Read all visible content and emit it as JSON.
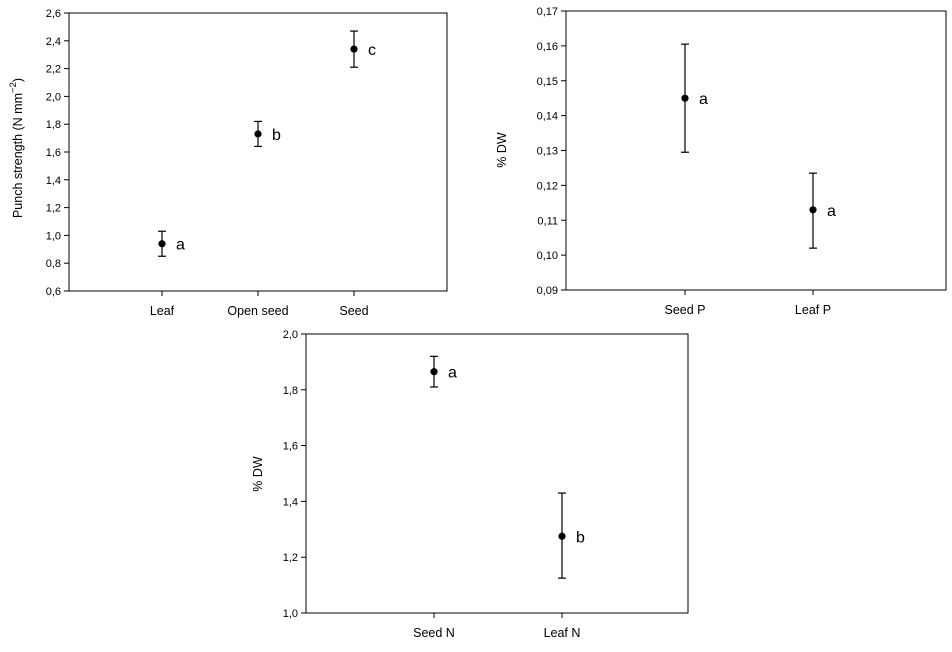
{
  "chart_data": [
    {
      "type": "scatter",
      "ylabel": "Punch strength (N  mm",
      "ylabel_sup": "−2",
      "ylabel_close": ")",
      "ylim": [
        0.6,
        2.6
      ],
      "yticks": [
        "0,6",
        "0,8",
        "1,0",
        "1,2",
        "1,4",
        "1,6",
        "1,8",
        "2,0",
        "2,2",
        "2,4",
        "2,6"
      ],
      "categories": [
        "Leaf",
        "Open seed",
        "Seed"
      ],
      "series": [
        {
          "values": [
            0.94,
            1.73,
            2.34
          ],
          "err_low": [
            0.85,
            1.64,
            2.21
          ],
          "err_high": [
            1.03,
            1.82,
            2.47
          ],
          "labels": [
            "a",
            "b",
            "c"
          ]
        }
      ]
    },
    {
      "type": "scatter",
      "ylabel": "% DW",
      "ylim": [
        0.09,
        0.17
      ],
      "yticks": [
        "0,09",
        "0,10",
        "0,11",
        "0,12",
        "0,13",
        "0,14",
        "0,15",
        "0,16",
        "0,17"
      ],
      "categories": [
        "Seed P",
        "Leaf P"
      ],
      "series": [
        {
          "values": [
            0.145,
            0.113
          ],
          "err_low": [
            0.1295,
            0.102
          ],
          "err_high": [
            0.1605,
            0.1235
          ],
          "labels": [
            "a",
            "a"
          ]
        }
      ]
    },
    {
      "type": "scatter",
      "ylabel": "% DW",
      "ylim": [
        1.0,
        2.0
      ],
      "yticks": [
        "1,0",
        "1,2",
        "1,4",
        "1,6",
        "1,8",
        "2,0"
      ],
      "categories": [
        "Seed N",
        "Leaf N"
      ],
      "series": [
        {
          "values": [
            1.865,
            1.275
          ],
          "err_low": [
            1.81,
            1.125
          ],
          "err_high": [
            1.92,
            1.43
          ],
          "labels": [
            "a",
            "b"
          ]
        }
      ]
    }
  ]
}
